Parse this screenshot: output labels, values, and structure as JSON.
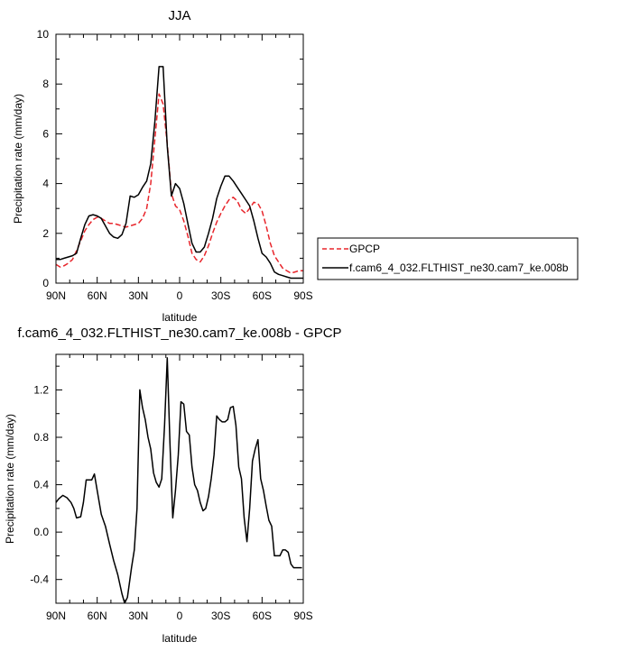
{
  "chart_data": [
    {
      "type": "line",
      "title": "JJA",
      "xlabel": "latitude",
      "ylabel": "Precipitation rate (mm/day)",
      "xlim": [
        -90,
        90
      ],
      "ylim": [
        0,
        10
      ],
      "x_ticks": [
        -90,
        -60,
        -30,
        0,
        30,
        60,
        90
      ],
      "x_tick_labels": [
        "90N",
        "60N",
        "30N",
        "0",
        "30S",
        "60S",
        "90S"
      ],
      "y_ticks": [
        0,
        2,
        4,
        6,
        8,
        10
      ],
      "y_tick_labels": [
        "0",
        "2",
        "4",
        "6",
        "8",
        "10"
      ],
      "legend_position": "right",
      "series": [
        {
          "name": "GPCP",
          "color": "#e8262c",
          "dash": "dashed",
          "x": [
            -90,
            -87,
            -84,
            -81,
            -78,
            -75,
            -72,
            -69,
            -66,
            -63,
            -60,
            -57,
            -54,
            -51,
            -48,
            -45,
            -42,
            -39,
            -36,
            -33,
            -30,
            -27,
            -24,
            -21,
            -18,
            -15,
            -12,
            -9,
            -6,
            -3,
            0,
            3,
            6,
            9,
            12,
            15,
            18,
            21,
            24,
            27,
            30,
            33,
            36,
            39,
            42,
            45,
            48,
            51,
            54,
            57,
            60,
            63,
            66,
            69,
            72,
            75,
            78,
            81,
            84,
            87,
            90
          ],
          "y": [
            0.75,
            0.65,
            0.7,
            0.8,
            0.95,
            1.3,
            1.7,
            2.1,
            2.35,
            2.55,
            2.65,
            2.6,
            2.5,
            2.4,
            2.4,
            2.35,
            2.3,
            2.25,
            2.3,
            2.35,
            2.4,
            2.6,
            3.0,
            4.0,
            5.8,
            7.6,
            7.2,
            5.6,
            3.6,
            3.1,
            2.95,
            2.5,
            1.9,
            1.2,
            0.95,
            0.85,
            1.1,
            1.5,
            2.0,
            2.45,
            2.8,
            3.1,
            3.35,
            3.45,
            3.3,
            2.95,
            2.8,
            3.0,
            3.25,
            3.2,
            2.9,
            2.3,
            1.6,
            1.1,
            0.85,
            0.6,
            0.5,
            0.4,
            0.45,
            0.5,
            0.5
          ]
        },
        {
          "name": "f.cam6_4_032.FLTHIST_ne30.cam7_ke.008b",
          "color": "#000000",
          "dash": "solid",
          "x": [
            -90,
            -87,
            -84,
            -81,
            -78,
            -75,
            -72,
            -69,
            -66,
            -63,
            -60,
            -57,
            -54,
            -51,
            -48,
            -45,
            -42,
            -39,
            -36,
            -33,
            -30,
            -27,
            -24,
            -21,
            -18,
            -15,
            -12,
            -9,
            -6,
            -3,
            0,
            3,
            6,
            9,
            12,
            15,
            18,
            21,
            24,
            27,
            30,
            33,
            36,
            39,
            42,
            45,
            48,
            51,
            54,
            57,
            60,
            63,
            66,
            69,
            72,
            75,
            78,
            81,
            84,
            87,
            90
          ],
          "y": [
            0.95,
            0.95,
            1.0,
            1.05,
            1.1,
            1.2,
            1.8,
            2.35,
            2.7,
            2.75,
            2.7,
            2.6,
            2.3,
            2.0,
            1.85,
            1.8,
            1.95,
            2.4,
            3.5,
            3.45,
            3.55,
            3.85,
            4.1,
            4.8,
            6.5,
            8.7,
            8.7,
            5.5,
            3.5,
            4.0,
            3.8,
            3.2,
            2.4,
            1.6,
            1.25,
            1.25,
            1.45,
            2.0,
            2.6,
            3.4,
            3.9,
            4.3,
            4.3,
            4.1,
            3.85,
            3.6,
            3.35,
            3.1,
            2.5,
            1.8,
            1.2,
            1.05,
            0.8,
            0.45,
            0.35,
            0.3,
            0.25,
            0.2,
            0.2,
            0.2,
            0.2
          ]
        }
      ]
    },
    {
      "type": "line",
      "title": "f.cam6_4_032.FLTHIST_ne30.cam7_ke.008b - GPCP",
      "xlabel": "latitude",
      "ylabel": "Precipitation rate (mm/day)",
      "xlim": [
        -90,
        90
      ],
      "ylim": [
        -0.6,
        1.5
      ],
      "x_ticks": [
        -90,
        -60,
        -30,
        0,
        30,
        60,
        90
      ],
      "x_tick_labels": [
        "90N",
        "60N",
        "30N",
        "0",
        "30S",
        "60S",
        "90S"
      ],
      "y_ticks": [
        -0.4,
        0.0,
        0.4,
        0.8,
        1.2
      ],
      "y_tick_labels": [
        "-0.4",
        "0.0",
        "0.4",
        "0.8",
        "1.2"
      ],
      "series": [
        {
          "color": "#000000",
          "dash": "solid",
          "x": [
            -90,
            -88,
            -85,
            -82,
            -79,
            -77,
            -75,
            -72,
            -70,
            -68,
            -66,
            -64,
            -62,
            -60,
            -57,
            -54,
            -51,
            -48,
            -45,
            -42,
            -40,
            -38,
            -35,
            -33,
            -31,
            -29,
            -27,
            -25,
            -23,
            -21,
            -19,
            -17,
            -15,
            -13,
            -11,
            -9,
            -7,
            -5,
            -3,
            -1,
            1,
            3,
            5,
            7,
            9,
            11,
            13,
            15,
            17,
            19,
            21,
            23,
            25,
            27,
            29,
            31,
            33,
            35,
            37,
            39,
            41,
            43,
            45,
            47,
            49,
            51,
            53,
            55,
            57,
            59,
            61,
            63,
            65,
            67,
            69,
            71,
            73,
            75,
            77,
            79,
            81,
            83,
            85,
            87,
            89
          ],
          "y": [
            0.25,
            0.28,
            0.31,
            0.29,
            0.25,
            0.2,
            0.12,
            0.13,
            0.25,
            0.44,
            0.44,
            0.44,
            0.49,
            0.35,
            0.15,
            0.05,
            -0.1,
            -0.24,
            -0.36,
            -0.52,
            -0.6,
            -0.55,
            -0.3,
            -0.15,
            0.2,
            1.2,
            1.05,
            0.95,
            0.8,
            0.7,
            0.5,
            0.42,
            0.38,
            0.45,
            0.9,
            1.47,
            0.75,
            0.12,
            0.35,
            0.65,
            1.1,
            1.08,
            0.85,
            0.82,
            0.55,
            0.4,
            0.35,
            0.25,
            0.18,
            0.2,
            0.3,
            0.45,
            0.65,
            0.98,
            0.95,
            0.93,
            0.93,
            0.95,
            1.05,
            1.06,
            0.9,
            0.55,
            0.45,
            0.12,
            -0.08,
            0.2,
            0.6,
            0.7,
            0.78,
            0.45,
            0.35,
            0.22,
            0.1,
            0.05,
            -0.2,
            -0.2,
            -0.2,
            -0.15,
            -0.15,
            -0.17,
            -0.27,
            -0.3,
            -0.3,
            -0.3,
            -0.3
          ]
        }
      ]
    }
  ]
}
